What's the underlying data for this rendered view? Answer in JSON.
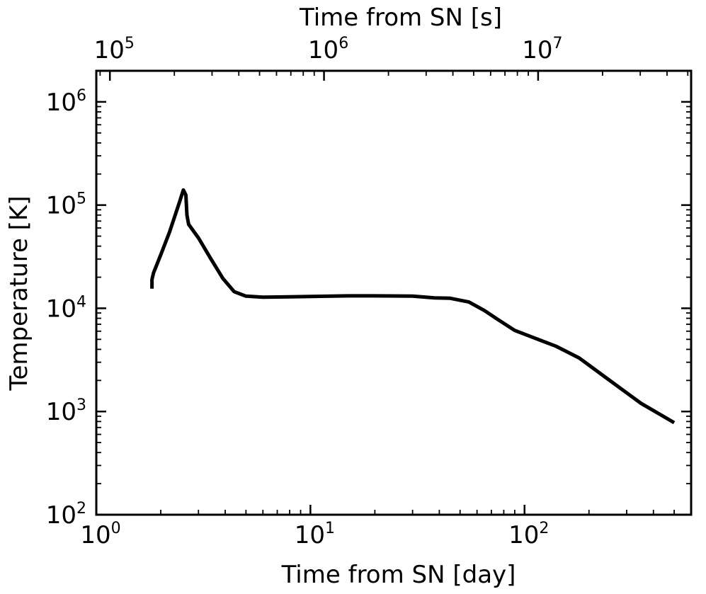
{
  "chart_data": {
    "type": "line",
    "xlabel": "Time from SN [day]",
    "ylabel": "Temperature [K]",
    "x2label": "Time from SN [s]",
    "xscale": "log",
    "yscale": "log",
    "x2scale": "log",
    "xlim": [
      1,
      600
    ],
    "ylim": [
      100,
      2000000
    ],
    "x2lim": [
      86400,
      51840000
    ],
    "x_ticks": [
      {
        "value": 1,
        "base": "10",
        "exp": "0"
      },
      {
        "value": 10,
        "base": "10",
        "exp": "1"
      },
      {
        "value": 100,
        "base": "10",
        "exp": "2"
      }
    ],
    "y_ticks": [
      {
        "value": 100,
        "base": "10",
        "exp": "2"
      },
      {
        "value": 1000,
        "base": "10",
        "exp": "3"
      },
      {
        "value": 10000,
        "base": "10",
        "exp": "4"
      },
      {
        "value": 100000,
        "base": "10",
        "exp": "5"
      },
      {
        "value": 1000000,
        "base": "10",
        "exp": "6"
      }
    ],
    "x2_ticks": [
      {
        "value": 100000,
        "base": "10",
        "exp": "5"
      },
      {
        "value": 1000000,
        "base": "10",
        "exp": "6"
      },
      {
        "value": 10000000,
        "base": "10",
        "exp": "7"
      }
    ],
    "grid": false,
    "ticks_direction": "in",
    "series": [
      {
        "color": "#000000",
        "x": [
          1.82,
          1.82,
          1.85,
          2.0,
          2.2,
          2.45,
          2.55,
          2.62,
          2.65,
          2.7,
          3.0,
          3.4,
          3.9,
          4.4,
          5.0,
          6.0,
          8.0,
          10.0,
          15.0,
          20.0,
          30.0,
          38.0,
          45.0,
          55.0,
          65.0,
          75.0,
          90.0,
          110.0,
          140.0,
          180.0,
          250.0,
          350.0,
          500.0
        ],
        "y": [
          15500,
          19000,
          22000,
          33000,
          55000,
          108000,
          140000,
          125000,
          80000,
          65000,
          48000,
          31000,
          19500,
          14500,
          13100,
          12800,
          12900,
          13000,
          13200,
          13200,
          13100,
          12600,
          12500,
          11500,
          9500,
          7800,
          6100,
          5200,
          4300,
          3300,
          2000,
          1200,
          780
        ]
      }
    ]
  }
}
